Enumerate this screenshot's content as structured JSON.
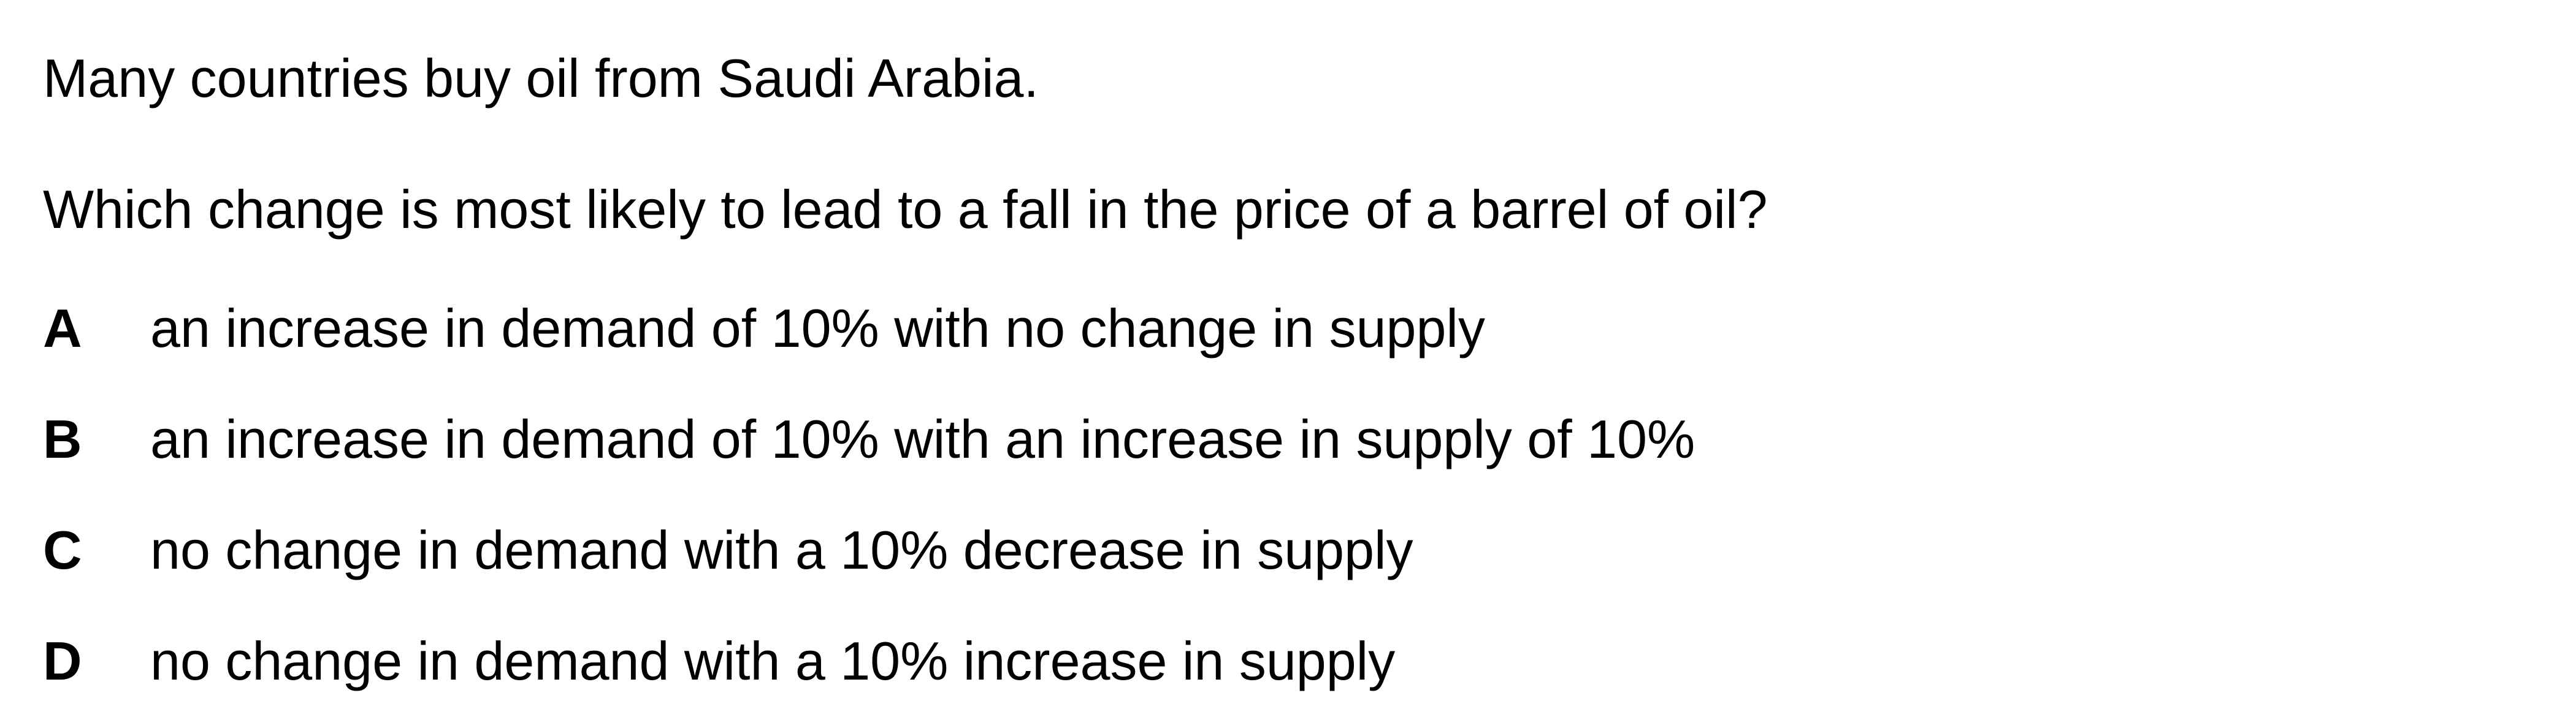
{
  "question": {
    "context": "Many countries buy oil from Saudi Arabia.",
    "prompt": "Which change is most likely to lead to a fall in the price of a barrel of oil?",
    "options": [
      {
        "letter": "A",
        "text": "an increase in demand of 10% with no change in supply"
      },
      {
        "letter": "B",
        "text": "an increase in demand of 10% with an increase in supply of 10%"
      },
      {
        "letter": "C",
        "text": "no change in demand with a 10% decrease in supply"
      },
      {
        "letter": "D",
        "text": "no change in demand with a 10% increase in supply"
      }
    ]
  }
}
